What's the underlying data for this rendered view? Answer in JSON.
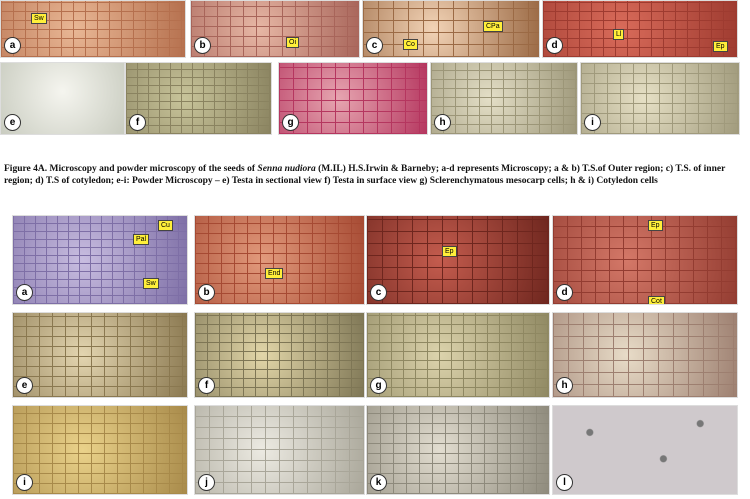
{
  "figure_a": {
    "panels": [
      {
        "letter": "a",
        "tags": [
          "Sw"
        ]
      },
      {
        "letter": "b",
        "tags": [
          "Oi"
        ]
      },
      {
        "letter": "c",
        "tags": [
          "CPa",
          "Co"
        ]
      },
      {
        "letter": "d",
        "tags": [
          "Ll",
          "Ep"
        ]
      },
      {
        "letter": "e",
        "tags": []
      },
      {
        "letter": "f",
        "tags": []
      },
      {
        "letter": "g",
        "tags": []
      },
      {
        "letter": "h",
        "tags": []
      },
      {
        "letter": "i",
        "tags": []
      }
    ],
    "caption": {
      "before": "Figure 4A. Microscopy and powder microscopy of the seeds of ",
      "species": "Senna nudiora",
      "after": " (M.IL) H.S.Irwin & Barneby; a-d represents Microscopy; a & b) T.S.of Outer region; c) T.S. of inner region; d) T.S of cotyledon; e-i: Powder Microscopy – e) Testa in sectional view f) Testa in surface view g) Sclerenchymatous mesocarp cells; h & i) Cotyledon cells"
    }
  },
  "figure_b": {
    "panels": [
      {
        "letter": "a",
        "tags": [
          "Cu",
          "Pal",
          "Sw"
        ]
      },
      {
        "letter": "b",
        "tags": [
          "End"
        ]
      },
      {
        "letter": "c",
        "tags": [
          "Ep"
        ]
      },
      {
        "letter": "d",
        "tags": [
          "Ep",
          "Cot"
        ]
      },
      {
        "letter": "e",
        "tags": []
      },
      {
        "letter": "f",
        "tags": []
      },
      {
        "letter": "g",
        "tags": []
      },
      {
        "letter": "h",
        "tags": []
      },
      {
        "letter": "i",
        "tags": []
      },
      {
        "letter": "j",
        "tags": []
      },
      {
        "letter": "k",
        "tags": []
      },
      {
        "letter": "l",
        "tags": []
      }
    ]
  }
}
